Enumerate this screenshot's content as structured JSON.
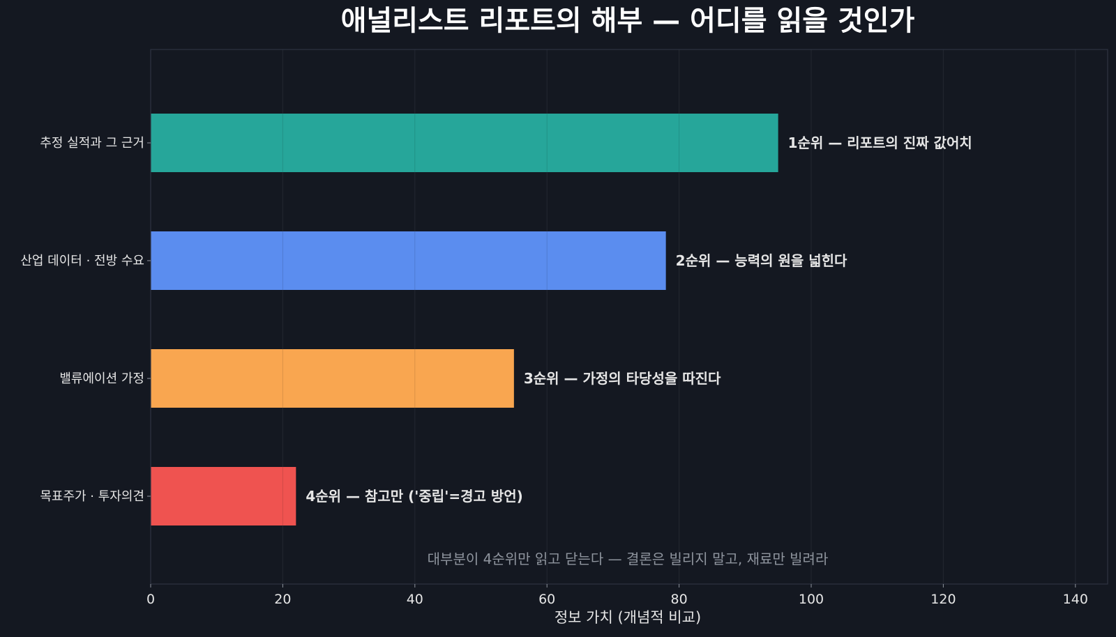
{
  "colors": {
    "background": "#141821",
    "plot_border": "#2e3442",
    "grid": "#282d38",
    "text": "#e6e6e6",
    "title": "#ffffff",
    "annotation": "#8f959e"
  },
  "chart_data": {
    "type": "bar",
    "orientation": "horizontal",
    "title": "애널리스트 리포트의 해부 — 어디를 읽을 것인가",
    "xlabel": "정보 가치 (개념적 비교)",
    "ylabel": "",
    "xlim": [
      0,
      145
    ],
    "xticks": [
      0,
      20,
      40,
      60,
      80,
      100,
      120,
      140
    ],
    "grid": true,
    "categories": [
      "추정 실적과 그 근거",
      "산업 데이터 · 전방 수요",
      "밸류에이션 가정",
      "목표주가 · 투자의견"
    ],
    "values": [
      95,
      78,
      55,
      22
    ],
    "bar_colors": [
      "#26a69a",
      "#5b8def",
      "#f9a650",
      "#ef5350"
    ],
    "bar_labels": [
      "1순위 — 리포트의 진짜 값어치",
      "2순위 — 능력의 원을 넓힌다",
      "3순위 — 가정의 타당성을 따진다",
      "4순위 — 참고만 ('중립'=경고 방언)"
    ],
    "annotation": "대부분이 4순위만 읽고 닫는다 — 결론은 빌리지 말고, 재료만 빌려라"
  }
}
